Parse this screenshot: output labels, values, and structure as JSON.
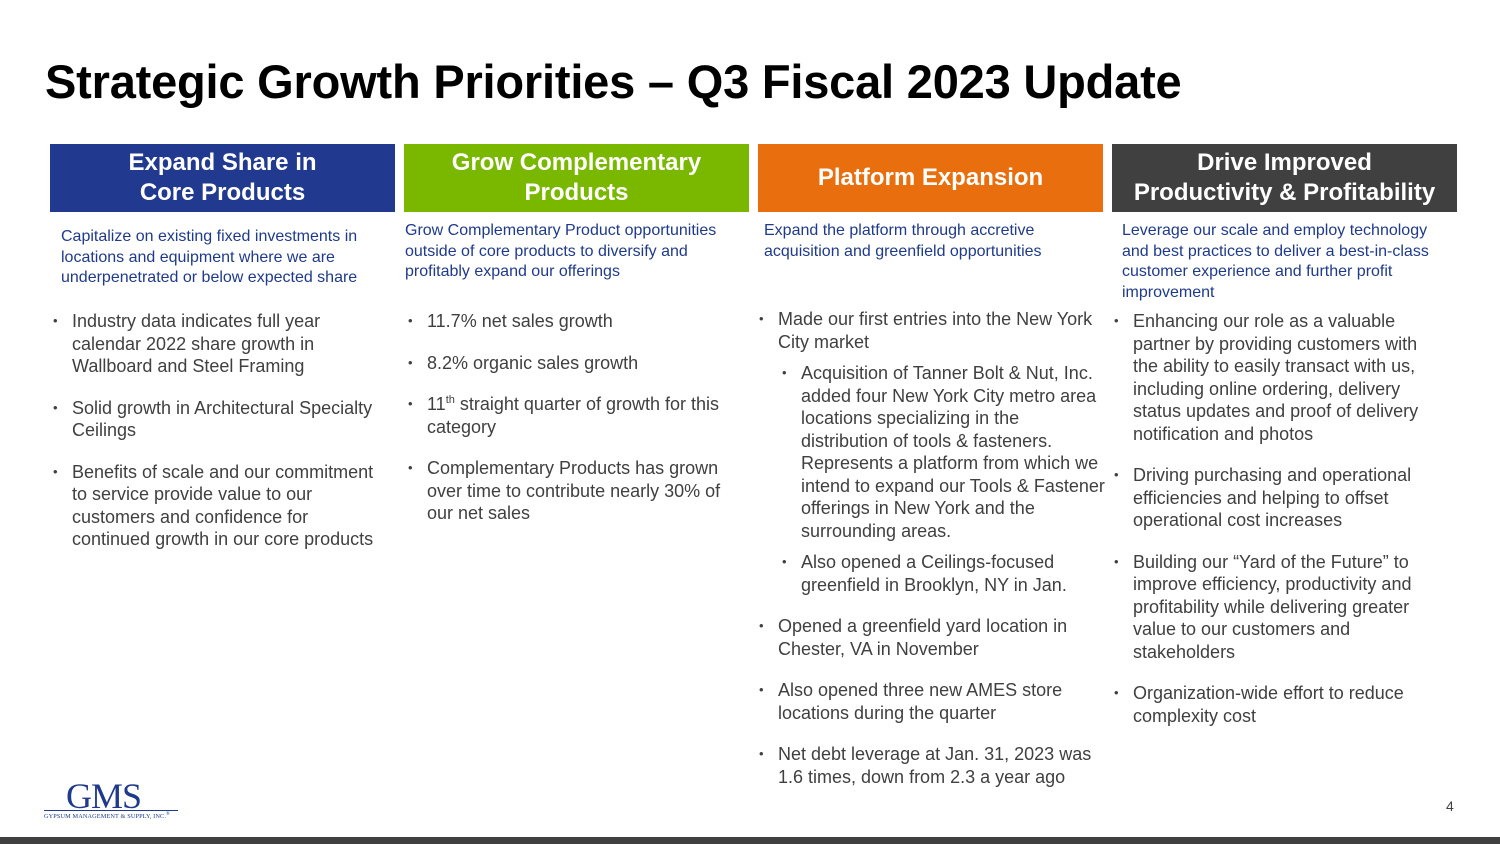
{
  "title": "Strategic Growth Priorities – Q3 Fiscal 2023 Update",
  "colors": {
    "col1": "#213a8f",
    "col2": "#7ab800",
    "col3": "#e86e0e",
    "col4": "#404040"
  },
  "columns": [
    {
      "header": "Expand Share in\nCore Products",
      "subtitle": "Capitalize on existing fixed investments in locations and equipment where we are underpenetrated or below expected share",
      "bullets": [
        "Industry data indicates full year calendar 2022 share growth in Wallboard and Steel Framing",
        "Solid growth in Architectural Specialty Ceilings",
        "Benefits of scale and our commitment to service provide value to our customers and confidence for continued growth in our core products"
      ]
    },
    {
      "header": "Grow Complementary\nProducts",
      "subtitle": "Grow Complementary Product opportunities outside of core products to diversify and profitably expand our offerings",
      "bullets": [
        "11.7% net sales growth",
        "8.2% organic sales growth",
        "straight quarter of growth for this category",
        "Complementary Products has grown over time to contribute nearly 30% of our net sales"
      ],
      "bullet3_prefix": "11",
      "bullet3_sup": "th"
    },
    {
      "header": "Platform Expansion",
      "subtitle": "Expand the platform through accretive acquisition and greenfield opportunities",
      "bullets": [
        "Made our first entries into the New York City market",
        "Acquisition of Tanner Bolt & Nut, Inc. added four New York City metro area locations specializing in the distribution of tools & fasteners. Represents a platform from which we intend to expand our Tools & Fastener offerings in New York and the surrounding areas.",
        "Also opened a Ceilings-focused greenfield in Brooklyn, NY in Jan.",
        "Opened a greenfield yard location in Chester, VA in November",
        "Also opened three new AMES store locations during the quarter",
        "Net debt leverage at Jan. 31, 2023 was 1.6 times, down from 2.3 a year ago"
      ]
    },
    {
      "header": "Drive Improved\nProductivity & Profitability",
      "subtitle": "Leverage our scale and employ technology and best practices to deliver a best-in-class customer experience and further profit improvement",
      "bullets": [
        "Enhancing our role as a valuable partner by providing customers with the ability to easily transact with us, including online ordering, delivery status updates and proof of delivery notification and photos",
        "Driving purchasing and operational efficiencies and helping to offset operational cost increases",
        "Building our “Yard of the Future” to improve efficiency, productivity and profitability while delivering greater value to our customers and stakeholders",
        "Organization-wide effort to reduce complexity cost"
      ]
    }
  ],
  "logo": {
    "mark": "GMS",
    "sub": "GYPSUM MANAGEMENT & SUPPLY, INC.",
    "registered": "®"
  },
  "page_number": "4"
}
